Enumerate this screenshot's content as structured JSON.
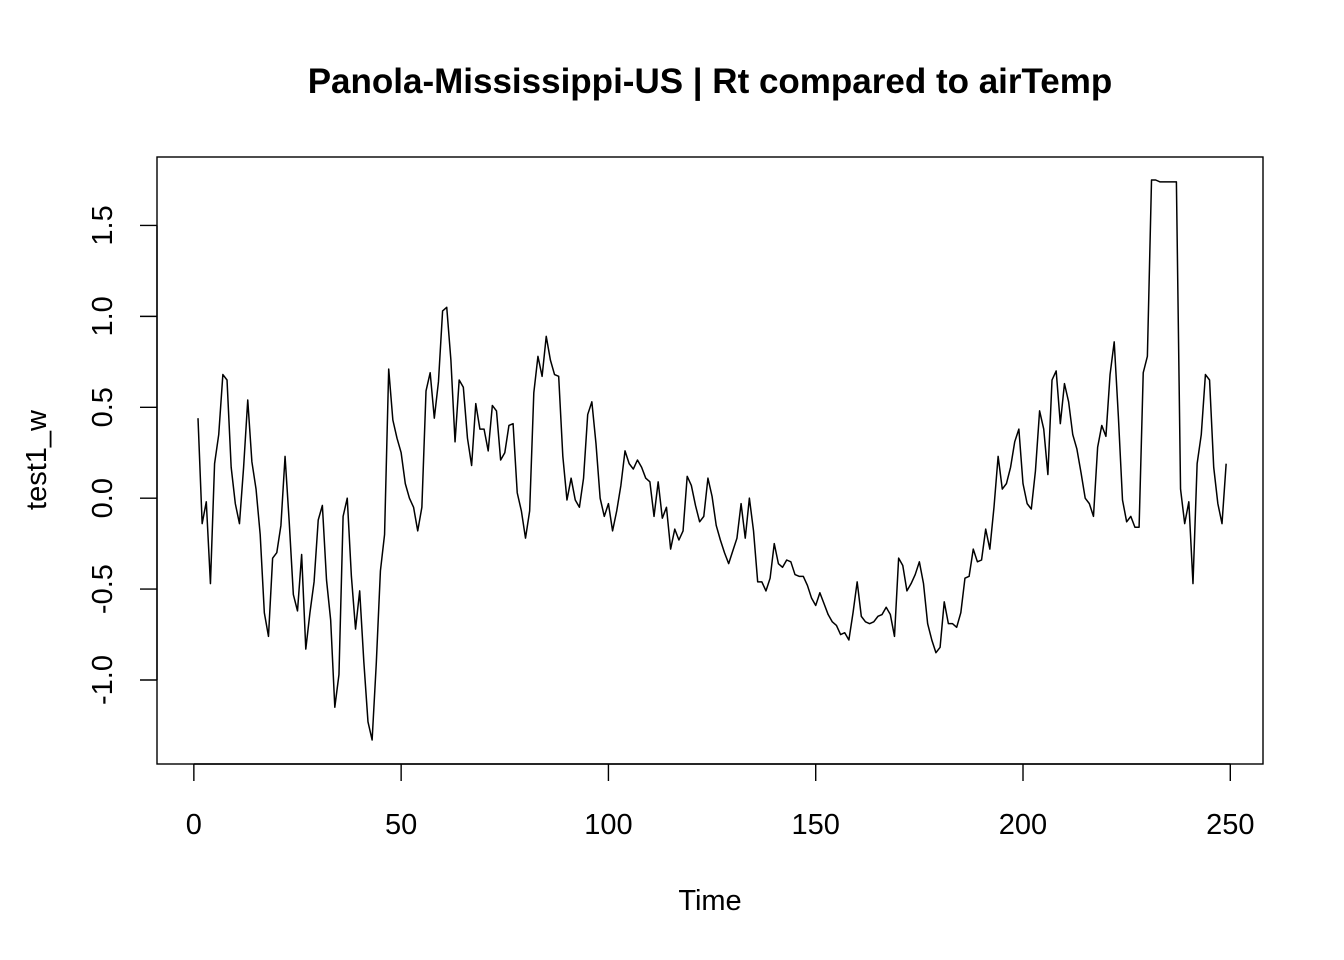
{
  "chart_data": {
    "type": "line",
    "title": "Panola-Mississippi-US | Rt compared to airTemp",
    "xlabel": "Time",
    "ylabel": "test1_w",
    "xlim": [
      1,
      248
    ],
    "ylim": [
      -1.33,
      1.75
    ],
    "x_ticks": [
      0,
      50,
      100,
      150,
      200,
      250
    ],
    "x_tick_labels": [
      "0",
      "50",
      "100",
      "150",
      "200",
      "250"
    ],
    "y_ticks": [
      -1.0,
      -0.5,
      0.0,
      0.5,
      1.0,
      1.5
    ],
    "y_tick_labels": [
      "-1.0",
      "-0.5",
      "0.0",
      "0.5",
      "1.0",
      "1.5"
    ],
    "grid": false,
    "series": [
      {
        "values": [
          0.44,
          -0.14,
          -0.02,
          -0.47,
          0.19,
          0.35,
          0.68,
          0.65,
          0.17,
          -0.03,
          -0.14,
          0.17,
          0.54,
          0.2,
          0.05,
          -0.2,
          -0.63,
          -0.76,
          -0.33,
          -0.3,
          -0.15,
          0.23,
          -0.13,
          -0.53,
          -0.62,
          -0.31,
          -0.83,
          -0.63,
          -0.46,
          -0.12,
          -0.04,
          -0.45,
          -0.67,
          -1.15,
          -0.97,
          -0.1,
          0.0,
          -0.43,
          -0.72,
          -0.51,
          -0.9,
          -1.23,
          -1.33,
          -0.91,
          -0.4,
          -0.2,
          0.71,
          0.43,
          0.33,
          0.25,
          0.08,
          0.0,
          -0.05,
          -0.18,
          -0.05,
          0.59,
          0.69,
          0.44,
          0.64,
          1.03,
          1.05,
          0.76,
          0.31,
          0.65,
          0.61,
          0.33,
          0.18,
          0.52,
          0.38,
          0.38,
          0.26,
          0.51,
          0.48,
          0.21,
          0.25,
          0.4,
          0.41,
          0.03,
          -0.07,
          -0.22,
          -0.07,
          0.58,
          0.78,
          0.67,
          0.89,
          0.76,
          0.68,
          0.67,
          0.23,
          -0.01,
          0.11,
          -0.01,
          -0.05,
          0.11,
          0.46,
          0.53,
          0.3,
          0.0,
          -0.1,
          -0.03,
          -0.18,
          -0.07,
          0.07,
          0.26,
          0.19,
          0.16,
          0.21,
          0.17,
          0.11,
          0.09,
          -0.1,
          0.09,
          -0.11,
          -0.05,
          -0.28,
          -0.17,
          -0.23,
          -0.18,
          0.12,
          0.07,
          -0.04,
          -0.13,
          -0.1,
          0.11,
          0.01,
          -0.15,
          -0.23,
          -0.3,
          -0.36,
          -0.29,
          -0.22,
          -0.03,
          -0.22,
          0.0,
          -0.18,
          -0.46,
          -0.46,
          -0.51,
          -0.44,
          -0.25,
          -0.36,
          -0.38,
          -0.34,
          -0.35,
          -0.42,
          -0.43,
          -0.43,
          -0.48,
          -0.55,
          -0.59,
          -0.52,
          -0.58,
          -0.64,
          -0.68,
          -0.7,
          -0.75,
          -0.74,
          -0.78,
          -0.63,
          -0.46,
          -0.65,
          -0.68,
          -0.69,
          -0.68,
          -0.65,
          -0.64,
          -0.6,
          -0.64,
          -0.76,
          -0.33,
          -0.37,
          -0.51,
          -0.47,
          -0.42,
          -0.35,
          -0.47,
          -0.69,
          -0.78,
          -0.85,
          -0.82,
          -0.57,
          -0.69,
          -0.69,
          -0.71,
          -0.63,
          -0.44,
          -0.43,
          -0.28,
          -0.35,
          -0.34,
          -0.17,
          -0.28,
          -0.05,
          0.23,
          0.05,
          0.08,
          0.17,
          0.31,
          0.38,
          0.08,
          -0.03,
          -0.06,
          0.15,
          0.48,
          0.38,
          0.13,
          0.65,
          0.7,
          0.41,
          0.63,
          0.53,
          0.35,
          0.27,
          0.14,
          0.0,
          -0.03,
          -0.1,
          0.28,
          0.4,
          0.34,
          0.68,
          0.86,
          0.45,
          -0.01,
          -0.13,
          -0.1,
          -0.16,
          -0.16,
          0.69,
          0.78,
          1.75,
          1.75,
          1.74,
          1.74,
          1.74,
          1.74,
          1.74,
          0.05,
          -0.14,
          -0.02,
          -0.47,
          0.19,
          0.35,
          0.68,
          0.65,
          0.17,
          -0.03,
          -0.14,
          0.19
        ]
      }
    ]
  }
}
